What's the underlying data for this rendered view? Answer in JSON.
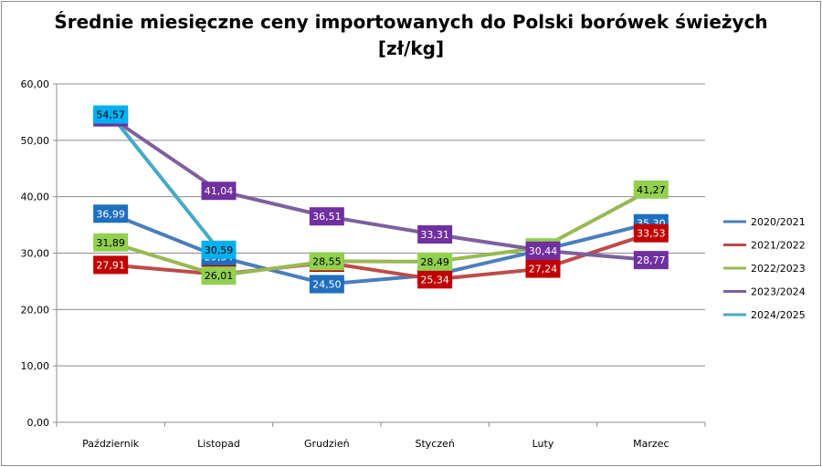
{
  "chart_data": {
    "type": "line",
    "title_line1": "Średnie miesięczne ceny importowanych do Polski borówek świeżych",
    "title_line2": "[zł/kg]",
    "xlabel": "",
    "ylabel": "",
    "ylim": [
      0,
      60
    ],
    "yticks": [
      "0,00",
      "10,00",
      "20,00",
      "30,00",
      "40,00",
      "50,00",
      "60,00"
    ],
    "categories": [
      "Październik",
      "Listopad",
      "Grudzień",
      "Styczeń",
      "Luty",
      "Marzec"
    ],
    "legend_position": "right",
    "grid": "horizontal",
    "series": [
      {
        "name": "2020/2021",
        "color": "#4a7ebb",
        "label_bg": "#1f6fbf",
        "label_text": "#ffffff",
        "values": [
          36.99,
          29.34,
          24.5,
          26.16,
          30.59,
          35.3
        ],
        "labels": [
          "36,99",
          "29,34",
          "24,50",
          "26,16",
          "30,59",
          "35,30"
        ]
      },
      {
        "name": "2021/2022",
        "color": "#be4b48",
        "label_bg": "#c00000",
        "label_text": "#ffffff",
        "values": [
          27.91,
          26.23,
          28.29,
          25.34,
          27.24,
          33.53
        ],
        "labels": [
          "27,91",
          "26,23",
          "28,29",
          "25,34",
          "27,24",
          "33,53"
        ]
      },
      {
        "name": "2022/2023",
        "color": "#98b954",
        "label_bg": "#92d050",
        "label_text": "#000000",
        "values": [
          31.89,
          26.01,
          28.55,
          28.49,
          31.03,
          41.27
        ],
        "labels": [
          "31,89",
          "26,01",
          "28,55",
          "28,49",
          "31,03",
          "41,27"
        ]
      },
      {
        "name": "2023/2024",
        "color": "#7d60a0",
        "label_bg": "#7030a0",
        "label_text": "#ffffff",
        "values": [
          54.06,
          41.04,
          36.51,
          33.31,
          30.44,
          28.77
        ],
        "labels": [
          "54,06",
          "41,04",
          "36,51",
          "33,31",
          "30,44",
          "28,77"
        ]
      },
      {
        "name": "2024/2025",
        "color": "#46aac5",
        "label_bg": "#00b0f0",
        "label_text": "#000000",
        "values": [
          54.57,
          30.59,
          null,
          null,
          null,
          null
        ],
        "labels": [
          "54,57",
          "30,59",
          null,
          null,
          null,
          null
        ]
      }
    ]
  }
}
